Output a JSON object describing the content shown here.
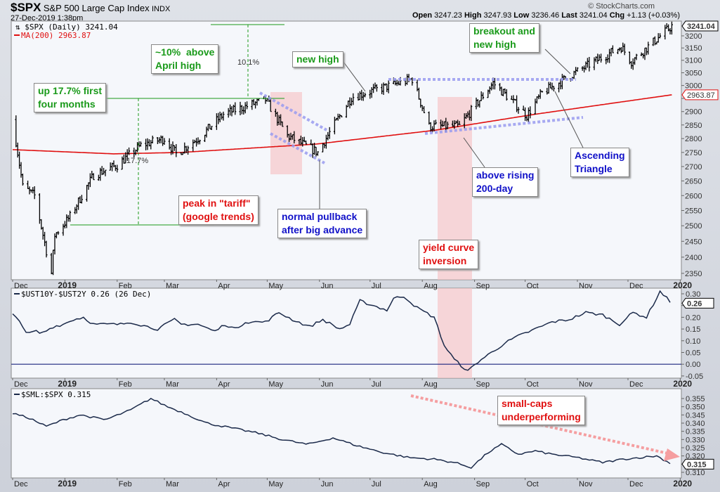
{
  "header": {
    "ticker": "$SPX",
    "name": "S&P 500 Large Cap Index",
    "exchange": "INDX",
    "datetime": "27-Dec-2019 1:38pm",
    "credit": "© StockCharts.com",
    "ohlc": [
      {
        "k": "Open",
        "v": "3247.23"
      },
      {
        "k": "High",
        "v": "3247.93"
      },
      {
        "k": "Low",
        "v": "3236.46"
      },
      {
        "k": "Last",
        "v": "3241.04"
      },
      {
        "k": "Chg",
        "v": "+1.13 (+0.03%)"
      }
    ]
  },
  "colors": {
    "price": "#000000",
    "ma": "#e01010",
    "indicator": "#1b2a4a",
    "annGreen": "#1a9a1a",
    "annRed": "#e01010",
    "annBlue": "#1010c8",
    "shade": "#f7c6c9",
    "triangle": "#9a9cf0",
    "arrow": "#f59ea0"
  },
  "chart_data": [
    {
      "type": "ohlc",
      "title": "$SPX (Daily) 3241.04",
      "legend_ma": "MA(200) 2963.87",
      "last_label": "3241.04",
      "ma_label": "2963.87",
      "scale": "log",
      "ylim": [
        2330,
        3260
      ],
      "yticks": [
        3200,
        3150,
        3100,
        3050,
        3000,
        2950,
        2900,
        2850,
        2800,
        2750,
        2700,
        2650,
        2600,
        2550,
        2500,
        2450,
        2400,
        2350
      ],
      "xticks": [
        {
          "d": 0,
          "t": "Dec"
        },
        {
          "d": 31,
          "t": "2019",
          "bold": true
        },
        {
          "d": 62,
          "t": "Feb"
        },
        {
          "d": 90,
          "t": "Mar"
        },
        {
          "d": 121,
          "t": "Apr"
        },
        {
          "d": 151,
          "t": "May"
        },
        {
          "d": 182,
          "t": "Jun"
        },
        {
          "d": 212,
          "t": "Jul"
        },
        {
          "d": 243,
          "t": "Aug"
        },
        {
          "d": 274,
          "t": "Sep"
        },
        {
          "d": 304,
          "t": "Oct"
        },
        {
          "d": 335,
          "t": "Nov"
        },
        {
          "d": 365,
          "t": "Dec"
        },
        {
          "d": 396,
          "t": "2020",
          "bold": true
        }
      ],
      "close_keyframes": [
        [
          2,
          2790
        ],
        [
          6,
          2630
        ],
        [
          13,
          2600
        ],
        [
          20,
          2420
        ],
        [
          23,
          2350
        ],
        [
          25,
          2470
        ],
        [
          34,
          2530
        ],
        [
          48,
          2670
        ],
        [
          62,
          2705
        ],
        [
          76,
          2775
        ],
        [
          90,
          2800
        ],
        [
          97,
          2745
        ],
        [
          111,
          2805
        ],
        [
          125,
          2890
        ],
        [
          150,
          2945
        ],
        [
          163,
          2810
        ],
        [
          181,
          2750
        ],
        [
          201,
          2955
        ],
        [
          237,
          3025
        ],
        [
          247,
          2845
        ],
        [
          265,
          2845
        ],
        [
          285,
          3010
        ],
        [
          305,
          2885
        ],
        [
          314,
          2970
        ],
        [
          331,
          3040
        ],
        [
          361,
          3155
        ],
        [
          367,
          3095
        ],
        [
          391,
          3241
        ]
      ],
      "ma200_keyframes": [
        [
          0,
          2760
        ],
        [
          60,
          2745
        ],
        [
          100,
          2750
        ],
        [
          180,
          2780
        ],
        [
          250,
          2830
        ],
        [
          310,
          2890
        ],
        [
          391,
          2963.87
        ]
      ],
      "measures": [
        "17.7%",
        "10.1%"
      ]
    },
    {
      "type": "line",
      "title": "$UST10Y-$UST2Y 0.26 (26 Dec)",
      "last_label": "0.26",
      "ylim": [
        -0.06,
        0.32
      ],
      "yticks": [
        0.3,
        0.25,
        0.2,
        0.15,
        0.1,
        0.05,
        0.0,
        -0.05
      ],
      "reference_line": 0,
      "keyframes": [
        [
          0,
          0.21
        ],
        [
          4,
          0.19
        ],
        [
          8,
          0.13
        ],
        [
          14,
          0.14
        ],
        [
          17,
          0.13
        ],
        [
          24,
          0.16
        ],
        [
          30,
          0.17
        ],
        [
          36,
          0.19
        ],
        [
          42,
          0.2
        ],
        [
          48,
          0.17
        ],
        [
          56,
          0.17
        ],
        [
          64,
          0.17
        ],
        [
          70,
          0.18
        ],
        [
          80,
          0.16
        ],
        [
          86,
          0.15
        ],
        [
          96,
          0.19
        ],
        [
          100,
          0.17
        ],
        [
          110,
          0.17
        ],
        [
          120,
          0.14
        ],
        [
          126,
          0.17
        ],
        [
          132,
          0.15
        ],
        [
          138,
          0.18
        ],
        [
          150,
          0.18
        ],
        [
          158,
          0.22
        ],
        [
          166,
          0.19
        ],
        [
          176,
          0.16
        ],
        [
          184,
          0.19
        ],
        [
          194,
          0.15
        ],
        [
          200,
          0.17
        ],
        [
          206,
          0.27
        ],
        [
          214,
          0.25
        ],
        [
          222,
          0.23
        ],
        [
          226,
          0.28
        ],
        [
          232,
          0.29
        ],
        [
          240,
          0.24
        ],
        [
          250,
          0.2
        ],
        [
          256,
          0.08
        ],
        [
          262,
          0.02
        ],
        [
          270,
          -0.03
        ],
        [
          276,
          0.01
        ],
        [
          284,
          0.05
        ],
        [
          292,
          0.09
        ],
        [
          300,
          0.12
        ],
        [
          310,
          0.15
        ],
        [
          320,
          0.18
        ],
        [
          330,
          0.19
        ],
        [
          340,
          0.22
        ],
        [
          350,
          0.21
        ],
        [
          360,
          0.17
        ],
        [
          368,
          0.22
        ],
        [
          376,
          0.2
        ],
        [
          384,
          0.31
        ],
        [
          391,
          0.26
        ]
      ]
    },
    {
      "type": "line",
      "title": "$SML:$SPX 0.315",
      "last_label": "0.315",
      "ylim": [
        0.308,
        0.358
      ],
      "yticks": [
        0.355,
        0.35,
        0.345,
        0.34,
        0.335,
        0.33,
        0.325,
        0.32,
        0.315,
        0.31
      ],
      "keyframes": [
        [
          0,
          0.346
        ],
        [
          10,
          0.343
        ],
        [
          20,
          0.338
        ],
        [
          30,
          0.342
        ],
        [
          40,
          0.345
        ],
        [
          55,
          0.342
        ],
        [
          70,
          0.348
        ],
        [
          82,
          0.355
        ],
        [
          92,
          0.35
        ],
        [
          102,
          0.346
        ],
        [
          115,
          0.34
        ],
        [
          130,
          0.337
        ],
        [
          145,
          0.334
        ],
        [
          160,
          0.33
        ],
        [
          175,
          0.327
        ],
        [
          190,
          0.331
        ],
        [
          205,
          0.326
        ],
        [
          220,
          0.322
        ],
        [
          235,
          0.319
        ],
        [
          250,
          0.318
        ],
        [
          262,
          0.316
        ],
        [
          272,
          0.313
        ],
        [
          282,
          0.322
        ],
        [
          290,
          0.327
        ],
        [
          300,
          0.321
        ],
        [
          310,
          0.323
        ],
        [
          320,
          0.321
        ],
        [
          335,
          0.319
        ],
        [
          350,
          0.316
        ],
        [
          362,
          0.318
        ],
        [
          372,
          0.319
        ],
        [
          382,
          0.32
        ],
        [
          391,
          0.315
        ]
      ]
    }
  ],
  "annotations": {
    "above_april": "~10%  above\nApril high",
    "up_first": "up 17.7% first\nfour months",
    "new_high": "new high",
    "breakout": "breakout and\nnew high",
    "tariff": "peak in \"tariff\"\n(google trends)",
    "pullback": "normal pullback\nafter big advance",
    "rising200": "above rising\n200-day",
    "inversion": "yield curve\ninversion",
    "triangle": "Ascending\nTriangle",
    "smallcaps": "small-caps\nunderperforming"
  }
}
